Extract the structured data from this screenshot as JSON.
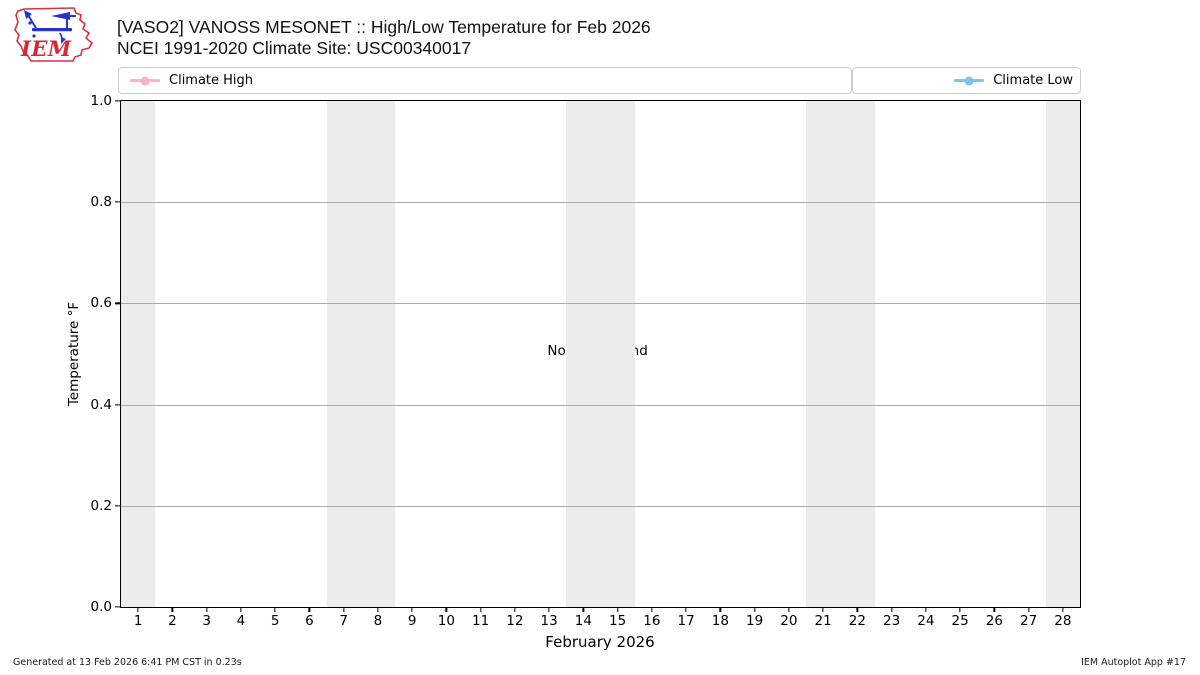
{
  "header": {
    "logo_text": "IEM",
    "title": "[VASO2] VANOSS MESONET :: High/Low Temperature for Feb 2026",
    "subtitle": "NCEI 1991-2020 Climate Site: USC00340017"
  },
  "legend": {
    "high": {
      "label": "Climate High",
      "color": "#ffb3c4"
    },
    "low": {
      "label": "Climate Low",
      "color": "#7cc7e8"
    }
  },
  "chart_data": {
    "type": "line",
    "title": "[VASO2] VANOSS MESONET :: High/Low Temperature for Feb 2026",
    "subtitle": "NCEI 1991-2020 Climate Site: USC00340017",
    "xlabel": "February 2026",
    "ylabel": "Temperature °F",
    "xlim": [
      0.5,
      28.5
    ],
    "ylim": [
      0.0,
      1.0
    ],
    "x_ticks": [
      1,
      2,
      3,
      4,
      5,
      6,
      7,
      8,
      9,
      10,
      11,
      12,
      13,
      14,
      15,
      16,
      17,
      18,
      19,
      20,
      21,
      22,
      23,
      24,
      25,
      26,
      27,
      28
    ],
    "y_ticks": [
      0.0,
      0.2,
      0.4,
      0.6,
      0.8,
      1.0
    ],
    "grid": "horizontal",
    "legend_position": "top",
    "band_color": "#ececec",
    "weekend_bands": [
      [
        0.5,
        1.5
      ],
      [
        6.5,
        8.5
      ],
      [
        13.5,
        15.5
      ],
      [
        20.5,
        22.5
      ],
      [
        27.5,
        28.5
      ]
    ],
    "series": [
      {
        "name": "Climate High",
        "color": "#ffb3c4",
        "x": [],
        "values": []
      },
      {
        "name": "Climate Low",
        "color": "#7cc7e8",
        "x": [],
        "values": []
      }
    ],
    "annotation": "No Data Found"
  },
  "footer": {
    "left": "Generated at 13 Feb 2026 6:41 PM CST in 0.23s",
    "right": "IEM Autoplot App #17"
  }
}
